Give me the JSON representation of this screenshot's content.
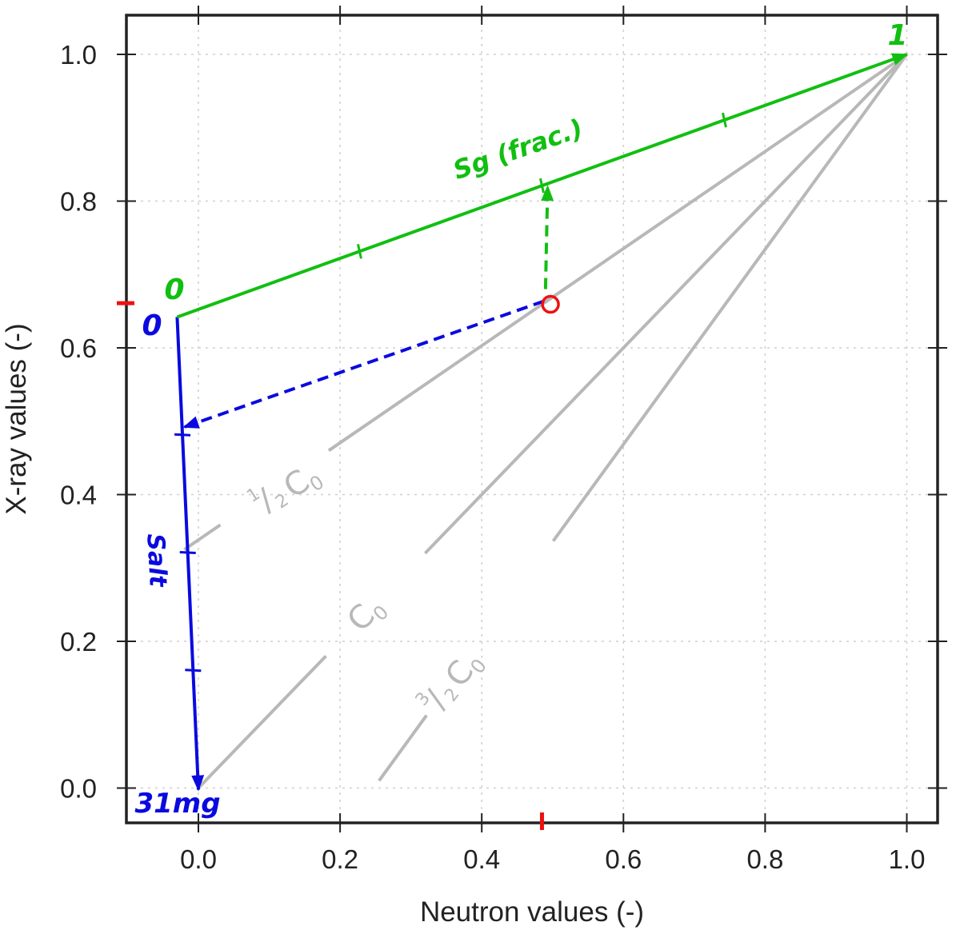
{
  "chart_data": {
    "type": "line",
    "xlabel": "Neutron values (-)",
    "ylabel": "X-ray values (-)",
    "xlim": [
      -0.11,
      1.045
    ],
    "ylim": [
      -0.05,
      1.055
    ],
    "x_ticks": [
      0.0,
      0.2,
      0.4,
      0.6,
      0.8,
      1.0
    ],
    "y_ticks": [
      0.0,
      0.2,
      0.4,
      0.6,
      0.8,
      1.0
    ],
    "x_tick_labels": [
      "0.0",
      "0.2",
      "0.4",
      "0.6",
      "0.8",
      "1.0"
    ],
    "y_tick_labels": [
      "0.0",
      "0.2",
      "0.4",
      "0.6",
      "0.8",
      "1.0"
    ],
    "grid": true,
    "colors": {
      "sg": "#11bf11",
      "salt": "#0a0adf",
      "gray": "#b8b8b8",
      "marker": "#ee1111"
    },
    "gray_lines": [
      {
        "name": "1/2 C0",
        "x": [
          -0.02,
          1.0
        ],
        "y": [
          0.325,
          1.0
        ]
      },
      {
        "name": "C0",
        "x": [
          0.0,
          1.0
        ],
        "y": [
          0.0,
          1.0
        ]
      },
      {
        "name": "3/2 C0",
        "x": [
          0.255,
          1.0
        ],
        "y": [
          0.01,
          1.0
        ]
      }
    ],
    "sg_line": {
      "x": [
        -0.03,
        1.0
      ],
      "y": [
        0.642,
        1.0
      ],
      "ticks": [
        0.25,
        0.5,
        0.75
      ]
    },
    "salt_line": {
      "x": [
        -0.03,
        0.0
      ],
      "y": [
        0.642,
        0.0
      ],
      "ticks": [
        0.25,
        0.5,
        0.75
      ]
    },
    "measured_point": {
      "x": 0.497,
      "y": 0.667
    },
    "salt_projection": {
      "x": [
        0.497,
        -0.02
      ],
      "y": [
        0.667,
        0.492
      ]
    },
    "sg_projection": {
      "x": [
        0.49,
        0.493
      ],
      "y": [
        0.68,
        0.82
      ]
    },
    "axis_markers": {
      "x": 0.485,
      "y": 0.662
    },
    "labels": {
      "sg_zero": "0",
      "sg_one": "1",
      "salt_zero": "0",
      "sg_title": "Sg (frac.)",
      "salt_title": "Salt",
      "salt_end": "31mg",
      "half_num": "1",
      "half_den": "2",
      "threehalf_num": "3",
      "threehalf_den": "2",
      "c_letter": "C",
      "c_sub": "0"
    }
  }
}
